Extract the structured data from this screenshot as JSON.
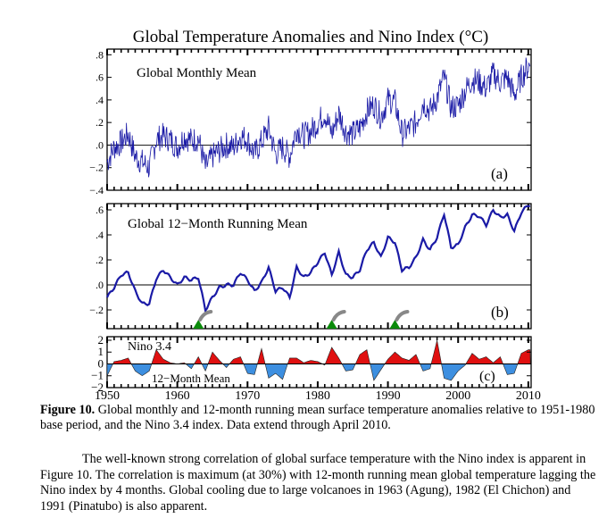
{
  "figure": {
    "title": "Global Temperature Anomalies and Nino Index (°C)",
    "x_tick_labels": [
      "1950",
      "1960",
      "1970",
      "1980",
      "1990",
      "2000",
      "2010"
    ]
  },
  "chart_data": [
    {
      "type": "line",
      "panel": "a",
      "panel_label": "(a)",
      "inner_label": "Global Monthly Mean",
      "xlim": [
        1950,
        2010.4
      ],
      "ylim": [
        -0.4,
        0.85
      ],
      "y_ticks": [
        0.8,
        0.6,
        0.4,
        0.2,
        0.0,
        -0.2,
        -0.4
      ],
      "y_tick_labels": [
        ".8",
        ".6",
        ".4",
        ".2",
        ".0",
        "−.2",
        "−.4"
      ],
      "line_color": "#1a1aa6",
      "series": [
        {
          "name": "Global Monthly Mean",
          "x": [
            1950,
            1951,
            1952,
            1953,
            1954,
            1955,
            1956,
            1957,
            1958,
            1959,
            1960,
            1961,
            1962,
            1963,
            1964,
            1965,
            1966,
            1967,
            1968,
            1969,
            1970,
            1971,
            1972,
            1973,
            1974,
            1975,
            1976,
            1977,
            1978,
            1979,
            1980,
            1981,
            1982,
            1983,
            1984,
            1985,
            1986,
            1987,
            1988,
            1989,
            1990,
            1991,
            1992,
            1993,
            1994,
            1995,
            1996,
            1997,
            1998,
            1999,
            2000,
            2001,
            2002,
            2003,
            2004,
            2005,
            2006,
            2007,
            2008,
            2009,
            2010
          ],
          "values": [
            -0.15,
            -0.02,
            0.02,
            0.1,
            -0.1,
            -0.15,
            -0.2,
            0.05,
            0.08,
            0.05,
            -0.02,
            0.08,
            0.04,
            0.06,
            -0.2,
            -0.1,
            -0.05,
            0.0,
            -0.02,
            0.08,
            0.05,
            -0.08,
            0.03,
            0.15,
            -0.08,
            -0.02,
            -0.1,
            0.15,
            0.08,
            0.12,
            0.2,
            0.28,
            0.1,
            0.28,
            0.12,
            0.1,
            0.15,
            0.3,
            0.36,
            0.25,
            0.4,
            0.38,
            0.1,
            0.14,
            0.2,
            0.38,
            0.3,
            0.42,
            0.6,
            0.33,
            0.35,
            0.48,
            0.58,
            0.56,
            0.5,
            0.63,
            0.56,
            0.6,
            0.44,
            0.6,
            0.7
          ]
        }
      ]
    },
    {
      "type": "line",
      "panel": "b",
      "panel_label": "(b)",
      "inner_label": "Global 12−Month Running Mean",
      "xlim": [
        1950,
        2010.4
      ],
      "ylim": [
        -0.35,
        0.65
      ],
      "y_ticks": [
        0.6,
        0.4,
        0.2,
        0.0,
        -0.2
      ],
      "y_tick_labels": [
        ".6",
        ".4",
        ".2",
        ".0",
        "−.2"
      ],
      "line_color": "#1a1aa6",
      "series": [
        {
          "name": "Global 12-Month Running Mean",
          "x": [
            1950,
            1951,
            1952,
            1953,
            1954,
            1955,
            1956,
            1957,
            1958,
            1959,
            1960,
            1961,
            1962,
            1963,
            1964,
            1965,
            1966,
            1967,
            1968,
            1969,
            1970,
            1971,
            1972,
            1973,
            1974,
            1975,
            1976,
            1977,
            1978,
            1979,
            1980,
            1981,
            1982,
            1983,
            1984,
            1985,
            1986,
            1987,
            1988,
            1989,
            1990,
            1991,
            1992,
            1993,
            1994,
            1995,
            1996,
            1997,
            1998,
            1999,
            2000,
            2001,
            2002,
            2003,
            2004,
            2005,
            2006,
            2007,
            2008,
            2009,
            2010
          ],
          "values": [
            -0.1,
            -0.02,
            0.08,
            0.1,
            -0.05,
            -0.15,
            -0.15,
            0.05,
            0.12,
            0.06,
            0.0,
            0.06,
            0.04,
            0.06,
            -0.2,
            -0.1,
            -0.02,
            0.0,
            0.0,
            0.1,
            0.04,
            -0.05,
            0.02,
            0.14,
            -0.05,
            -0.02,
            -0.1,
            0.14,
            0.06,
            0.1,
            0.18,
            0.26,
            0.08,
            0.26,
            0.08,
            0.06,
            0.12,
            0.28,
            0.34,
            0.22,
            0.38,
            0.34,
            0.12,
            0.14,
            0.22,
            0.36,
            0.28,
            0.38,
            0.57,
            0.3,
            0.32,
            0.46,
            0.56,
            0.55,
            0.48,
            0.6,
            0.54,
            0.56,
            0.43,
            0.58,
            0.64
          ]
        }
      ],
      "volcano_markers": [
        {
          "name": "Agung",
          "year": 1963
        },
        {
          "name": "El Chichon",
          "year": 1982
        },
        {
          "name": "Pinatubo",
          "year": 1991
        }
      ]
    },
    {
      "type": "area",
      "panel": "c",
      "panel_label": "(c)",
      "inner_label": "Nino 3.4",
      "sub_label": "12−Month Mean",
      "xlim": [
        1950,
        2010.4
      ],
      "ylim": [
        -2,
        2.3
      ],
      "y_ticks": [
        2,
        1,
        0,
        -1,
        -2
      ],
      "y_tick_labels": [
        "2",
        "1",
        "0",
        "−1",
        "−2"
      ],
      "positive_color": "#e01010",
      "negative_color": "#3d8fe0",
      "series": [
        {
          "name": "Nino 3.4 12-Month Mean",
          "x": [
            1950,
            1951,
            1952,
            1953,
            1954,
            1955,
            1956,
            1957,
            1958,
            1959,
            1960,
            1961,
            1962,
            1963,
            1964,
            1965,
            1966,
            1967,
            1968,
            1969,
            1970,
            1971,
            1972,
            1973,
            1974,
            1975,
            1976,
            1977,
            1978,
            1979,
            1980,
            1981,
            1982,
            1983,
            1984,
            1985,
            1986,
            1987,
            1988,
            1989,
            1990,
            1991,
            1992,
            1993,
            1994,
            1995,
            1996,
            1997,
            1998,
            1999,
            2000,
            2001,
            2002,
            2003,
            2004,
            2005,
            2006,
            2007,
            2008,
            2009,
            2010
          ],
          "values": [
            -1.0,
            0.2,
            0.3,
            0.5,
            -0.6,
            -1.0,
            -0.6,
            1.2,
            0.4,
            0.1,
            0.0,
            0.1,
            -0.4,
            0.6,
            -0.6,
            1.0,
            0.3,
            -0.3,
            0.4,
            0.6,
            -0.8,
            -0.9,
            1.3,
            -1.2,
            -0.8,
            -1.3,
            0.5,
            0.5,
            0.1,
            0.3,
            0.2,
            -0.1,
            1.4,
            0.5,
            -0.6,
            -0.5,
            0.8,
            1.2,
            -1.4,
            -0.5,
            0.4,
            1.0,
            0.5,
            0.3,
            0.8,
            -0.6,
            -0.4,
            2.0,
            -1.2,
            -1.4,
            -0.6,
            -0.1,
            0.9,
            0.4,
            0.6,
            0.1,
            0.6,
            -0.9,
            -0.8,
            0.9,
            1.2
          ]
        }
      ]
    }
  ],
  "caption": {
    "label": "Figure 10.",
    "text": "Global monthly and 12-month running mean surface temperature anomalies relative to 1951-1980 base period, and the Nino 3.4 index.  Data extend through April 2010."
  },
  "body": {
    "text": "The well-known strong correlation of global surface temperature with the Nino index is apparent in Figure 10.  The correlation is maximum (at 30%) with 12-month running mean global temperature lagging the Nino index by 4 months.  Global cooling due to large volcanoes in 1963 (Agung), 1982 (El Chichon) and 1991 (Pinatubo) is also apparent."
  }
}
